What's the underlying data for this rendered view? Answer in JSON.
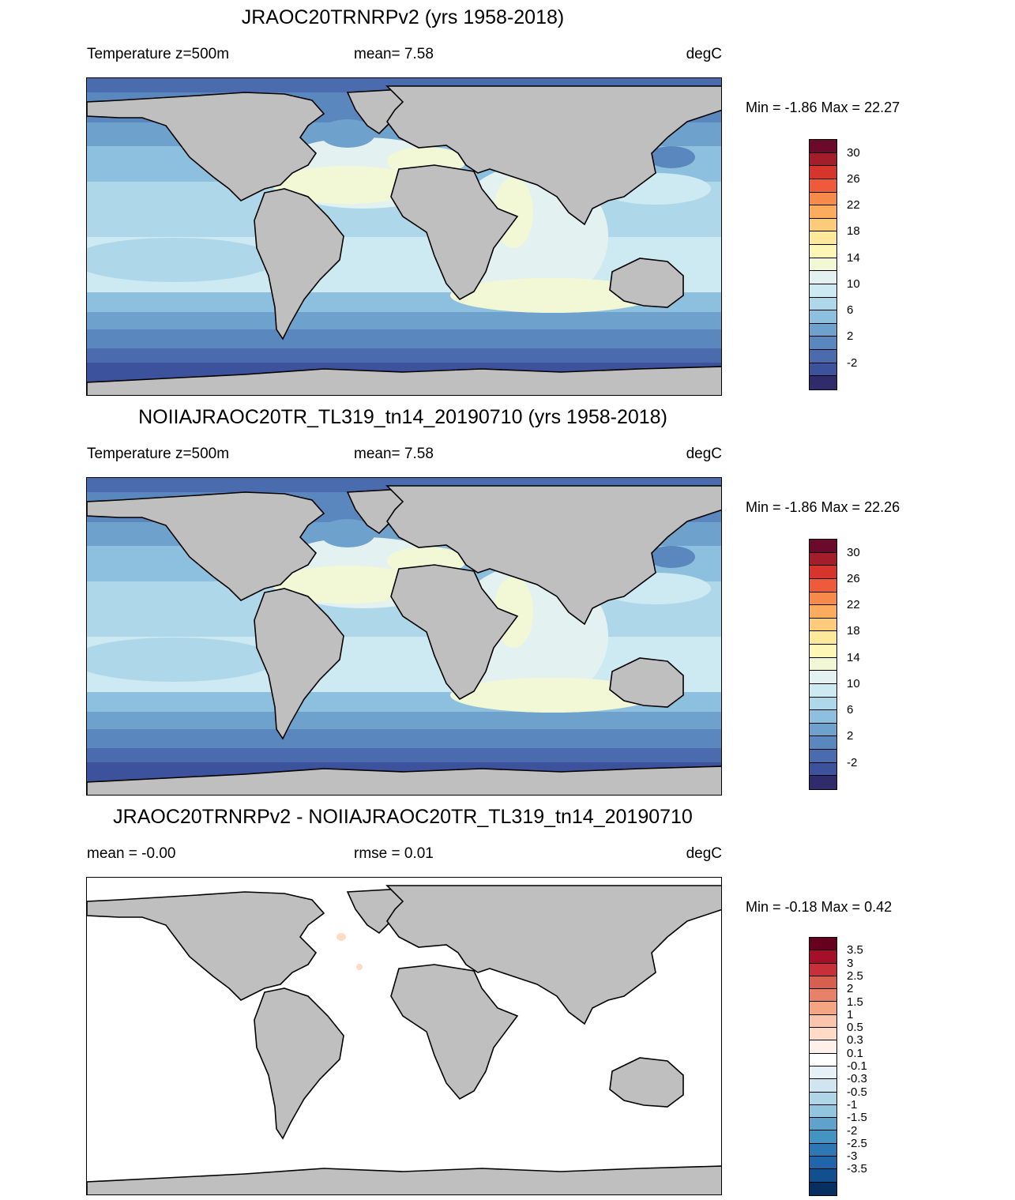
{
  "panels": [
    {
      "title": "JRAOC20TRNRPv2 (yrs 1958-2018)",
      "left_label": "Temperature z=500m",
      "middle_label": "mean=   7.58",
      "units": "degC",
      "minmax": "Min =  -1.86 Max =  22.27",
      "colorbar": {
        "colors": [
          "#6b0a2a",
          "#a31d2a",
          "#d6352c",
          "#ee5a3a",
          "#f68a4a",
          "#fbac5d",
          "#fdcb7a",
          "#fee99a",
          "#fdf6b4",
          "#f2f8d5",
          "#e3f2f1",
          "#cde9f2",
          "#aed8ea",
          "#8cc0de",
          "#6ea2cc",
          "#5a87bd",
          "#4a6bae",
          "#3c529c",
          "#302c6c"
        ],
        "labels": [
          "30",
          "26",
          "22",
          "18",
          "14",
          "10",
          "6",
          "2",
          "-2"
        ]
      }
    },
    {
      "title": "NOIIAJRAOC20TR_TL319_tn14_20190710 (yrs 1958-2018)",
      "left_label": "Temperature z=500m",
      "middle_label": "mean=   7.58",
      "units": "degC",
      "minmax": "Min =  -1.86 Max =  22.26",
      "colorbar": {
        "colors": [
          "#6b0a2a",
          "#a31d2a",
          "#d6352c",
          "#ee5a3a",
          "#f68a4a",
          "#fbac5d",
          "#fdcb7a",
          "#fee99a",
          "#fdf6b4",
          "#f2f8d5",
          "#e3f2f1",
          "#cde9f2",
          "#aed8ea",
          "#8cc0de",
          "#6ea2cc",
          "#5a87bd",
          "#4a6bae",
          "#3c529c",
          "#302c6c"
        ],
        "labels": [
          "30",
          "26",
          "22",
          "18",
          "14",
          "10",
          "6",
          "2",
          "-2"
        ]
      }
    },
    {
      "title": "JRAOC20TRNRPv2 - NOIIAJRAOC20TR_TL319_tn14_20190710",
      "left_label": "mean =  -0.00",
      "middle_label": "rmse =   0.01",
      "units": "degC",
      "minmax": "Min =  -0.18 Max =    0.42",
      "colorbar": {
        "colors": [
          "#67001f",
          "#a50f27",
          "#c7303a",
          "#d6604d",
          "#e58267",
          "#f4a582",
          "#f9c6ad",
          "#fddbc7",
          "#fff1ea",
          "#ffffff",
          "#e6f1f7",
          "#d1e5f0",
          "#b0d5e7",
          "#92c5de",
          "#5fa3cc",
          "#4393c3",
          "#2e77b5",
          "#2166ac",
          "#124f8f",
          "#053061"
        ],
        "labels": [
          "3.5",
          "3",
          "2.5",
          "2",
          "1.5",
          "1",
          "0.5",
          "0.3",
          "0.1",
          "-0.1",
          "-0.3",
          "-0.5",
          "-1",
          "-1.5",
          "-2",
          "-2.5",
          "-3",
          "-3.5"
        ]
      }
    }
  ]
}
